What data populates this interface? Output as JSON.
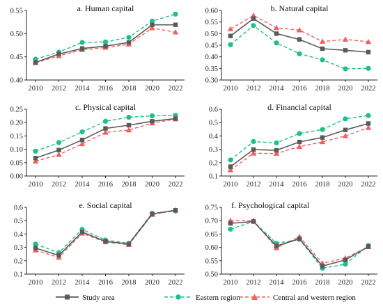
{
  "chart_data": [
    {
      "type": "line",
      "title": "a. Human capital",
      "x": [
        "2010",
        "2012",
        "2014",
        "2016",
        "2018",
        "2020",
        "2022"
      ],
      "ylim": [
        0.4,
        0.55
      ],
      "yticks": [
        0.4,
        0.45,
        0.5,
        0.55
      ],
      "ytick_labels": [
        "0.40",
        "0.45",
        "0.50",
        "0.55"
      ],
      "title_position": "top-center",
      "series": [
        {
          "name": "Study area",
          "values": [
            0.438,
            0.456,
            0.468,
            0.473,
            0.481,
            0.519,
            0.519
          ]
        },
        {
          "name": "Eastern region",
          "values": [
            0.445,
            0.46,
            0.481,
            0.482,
            0.492,
            0.527,
            0.542
          ]
        },
        {
          "name": "Central and western region",
          "values": [
            0.437,
            0.452,
            0.465,
            0.47,
            0.477,
            0.512,
            0.503
          ]
        }
      ]
    },
    {
      "type": "line",
      "title": "b. Natural capital",
      "x": [
        "2010",
        "2012",
        "2014",
        "2016",
        "2018",
        "2020",
        "2022"
      ],
      "ylim": [
        0.3,
        0.6
      ],
      "yticks": [
        0.3,
        0.35,
        0.4,
        0.45,
        0.5,
        0.55,
        0.6
      ],
      "ytick_labels": [
        "0.30",
        "0.35",
        "0.40",
        "0.45",
        "0.50",
        "0.55",
        "0.60"
      ],
      "title_position": "top-center",
      "series": [
        {
          "name": "Study area",
          "values": [
            0.49,
            0.565,
            0.5,
            0.475,
            0.435,
            0.428,
            0.42
          ]
        },
        {
          "name": "Eastern region",
          "values": [
            0.452,
            0.535,
            0.46,
            0.413,
            0.387,
            0.348,
            0.35
          ]
        },
        {
          "name": "Central and western region",
          "values": [
            0.52,
            0.578,
            0.525,
            0.515,
            0.466,
            0.475,
            0.465
          ]
        }
      ]
    },
    {
      "type": "line",
      "title": "c. Physical capital",
      "x": [
        "2010",
        "2012",
        "2014",
        "2016",
        "2018",
        "2020",
        "2022"
      ],
      "ylim": [
        0.0,
        0.25
      ],
      "yticks": [
        0.0,
        0.05,
        0.1,
        0.15,
        0.2,
        0.25
      ],
      "ytick_labels": [
        "0.00",
        "0.05",
        "0.10",
        "0.15",
        "0.20",
        "0.25"
      ],
      "title_position": "top-center",
      "series": [
        {
          "name": "Study area",
          "values": [
            0.067,
            0.097,
            0.135,
            0.178,
            0.19,
            0.205,
            0.215
          ]
        },
        {
          "name": "Eastern region",
          "values": [
            0.093,
            0.125,
            0.165,
            0.205,
            0.22,
            0.225,
            0.227
          ]
        },
        {
          "name": "Central and western region",
          "values": [
            0.055,
            0.08,
            0.12,
            0.163,
            0.172,
            0.198,
            0.213
          ]
        }
      ]
    },
    {
      "type": "line",
      "title": "d. Financial capital",
      "x": [
        "2010",
        "2012",
        "2014",
        "2016",
        "2018",
        "2020",
        "2022"
      ],
      "ylim": [
        0.1,
        0.6
      ],
      "yticks": [
        0.1,
        0.2,
        0.3,
        0.4,
        0.5,
        0.6
      ],
      "ytick_labels": [
        "0.1",
        "0.2",
        "0.3",
        "0.4",
        "0.5",
        "0.6"
      ],
      "title_position": "top-center",
      "series": [
        {
          "name": "Study area",
          "values": [
            0.17,
            0.298,
            0.292,
            0.355,
            0.388,
            0.445,
            0.493
          ]
        },
        {
          "name": "Eastern region",
          "values": [
            0.22,
            0.358,
            0.348,
            0.418,
            0.448,
            0.528,
            0.553
          ]
        },
        {
          "name": "Central and western region",
          "values": [
            0.145,
            0.27,
            0.268,
            0.32,
            0.355,
            0.4,
            0.462
          ]
        }
      ]
    },
    {
      "type": "line",
      "title": "e. Social capital",
      "x": [
        "2010",
        "2012",
        "2014",
        "2016",
        "2018",
        "2020",
        "2022"
      ],
      "ylim": [
        0.1,
        0.6
      ],
      "yticks": [
        0.1,
        0.2,
        0.3,
        0.4,
        0.5,
        0.6
      ],
      "ytick_labels": [
        "0.1",
        "0.2",
        "0.3",
        "0.4",
        "0.5",
        "0.6"
      ],
      "title_position": "top-center",
      "series": [
        {
          "name": "Study area",
          "values": [
            0.295,
            0.24,
            0.415,
            0.345,
            0.325,
            0.55,
            0.578
          ]
        },
        {
          "name": "Eastern region",
          "values": [
            0.325,
            0.26,
            0.435,
            0.355,
            0.33,
            0.555,
            0.572
          ]
        },
        {
          "name": "Central and western region",
          "values": [
            0.278,
            0.225,
            0.405,
            0.34,
            0.32,
            0.545,
            0.58
          ]
        }
      ]
    },
    {
      "type": "line",
      "title": "f. Psychological capital",
      "x": [
        "2010",
        "2012",
        "2014",
        "2016",
        "2018",
        "2020",
        "2022"
      ],
      "ylim": [
        0.5,
        0.75
      ],
      "yticks": [
        0.5,
        0.55,
        0.6,
        0.65,
        0.7,
        0.75
      ],
      "ytick_labels": [
        "0.50",
        "0.55",
        "0.60",
        "0.65",
        "0.70",
        "0.75"
      ],
      "title_position": "top-left",
      "series": [
        {
          "name": "Study area",
          "values": [
            0.69,
            0.697,
            0.605,
            0.632,
            0.53,
            0.553,
            0.603
          ]
        },
        {
          "name": "Eastern region",
          "values": [
            0.668,
            0.697,
            0.615,
            0.63,
            0.522,
            0.537,
            0.607
          ]
        },
        {
          "name": "Central and western region",
          "values": [
            0.7,
            0.7,
            0.598,
            0.64,
            0.54,
            0.56,
            0.602
          ]
        }
      ]
    }
  ],
  "legend": {
    "placement": "bottom",
    "items": [
      {
        "label": "Study area",
        "color": "#5a5a5a",
        "marker": "square",
        "dash": "solid"
      },
      {
        "label": "Eastern region",
        "color": "#1fbf8a",
        "marker": "circle",
        "dash": "dashed"
      },
      {
        "label": "Central and western region",
        "color": "#f06060",
        "marker": "triangle",
        "dash": "dashed"
      }
    ]
  },
  "colors": {
    "study_area": "#5a5a5a",
    "eastern": "#1fbf8a",
    "central_western": "#f06060"
  }
}
